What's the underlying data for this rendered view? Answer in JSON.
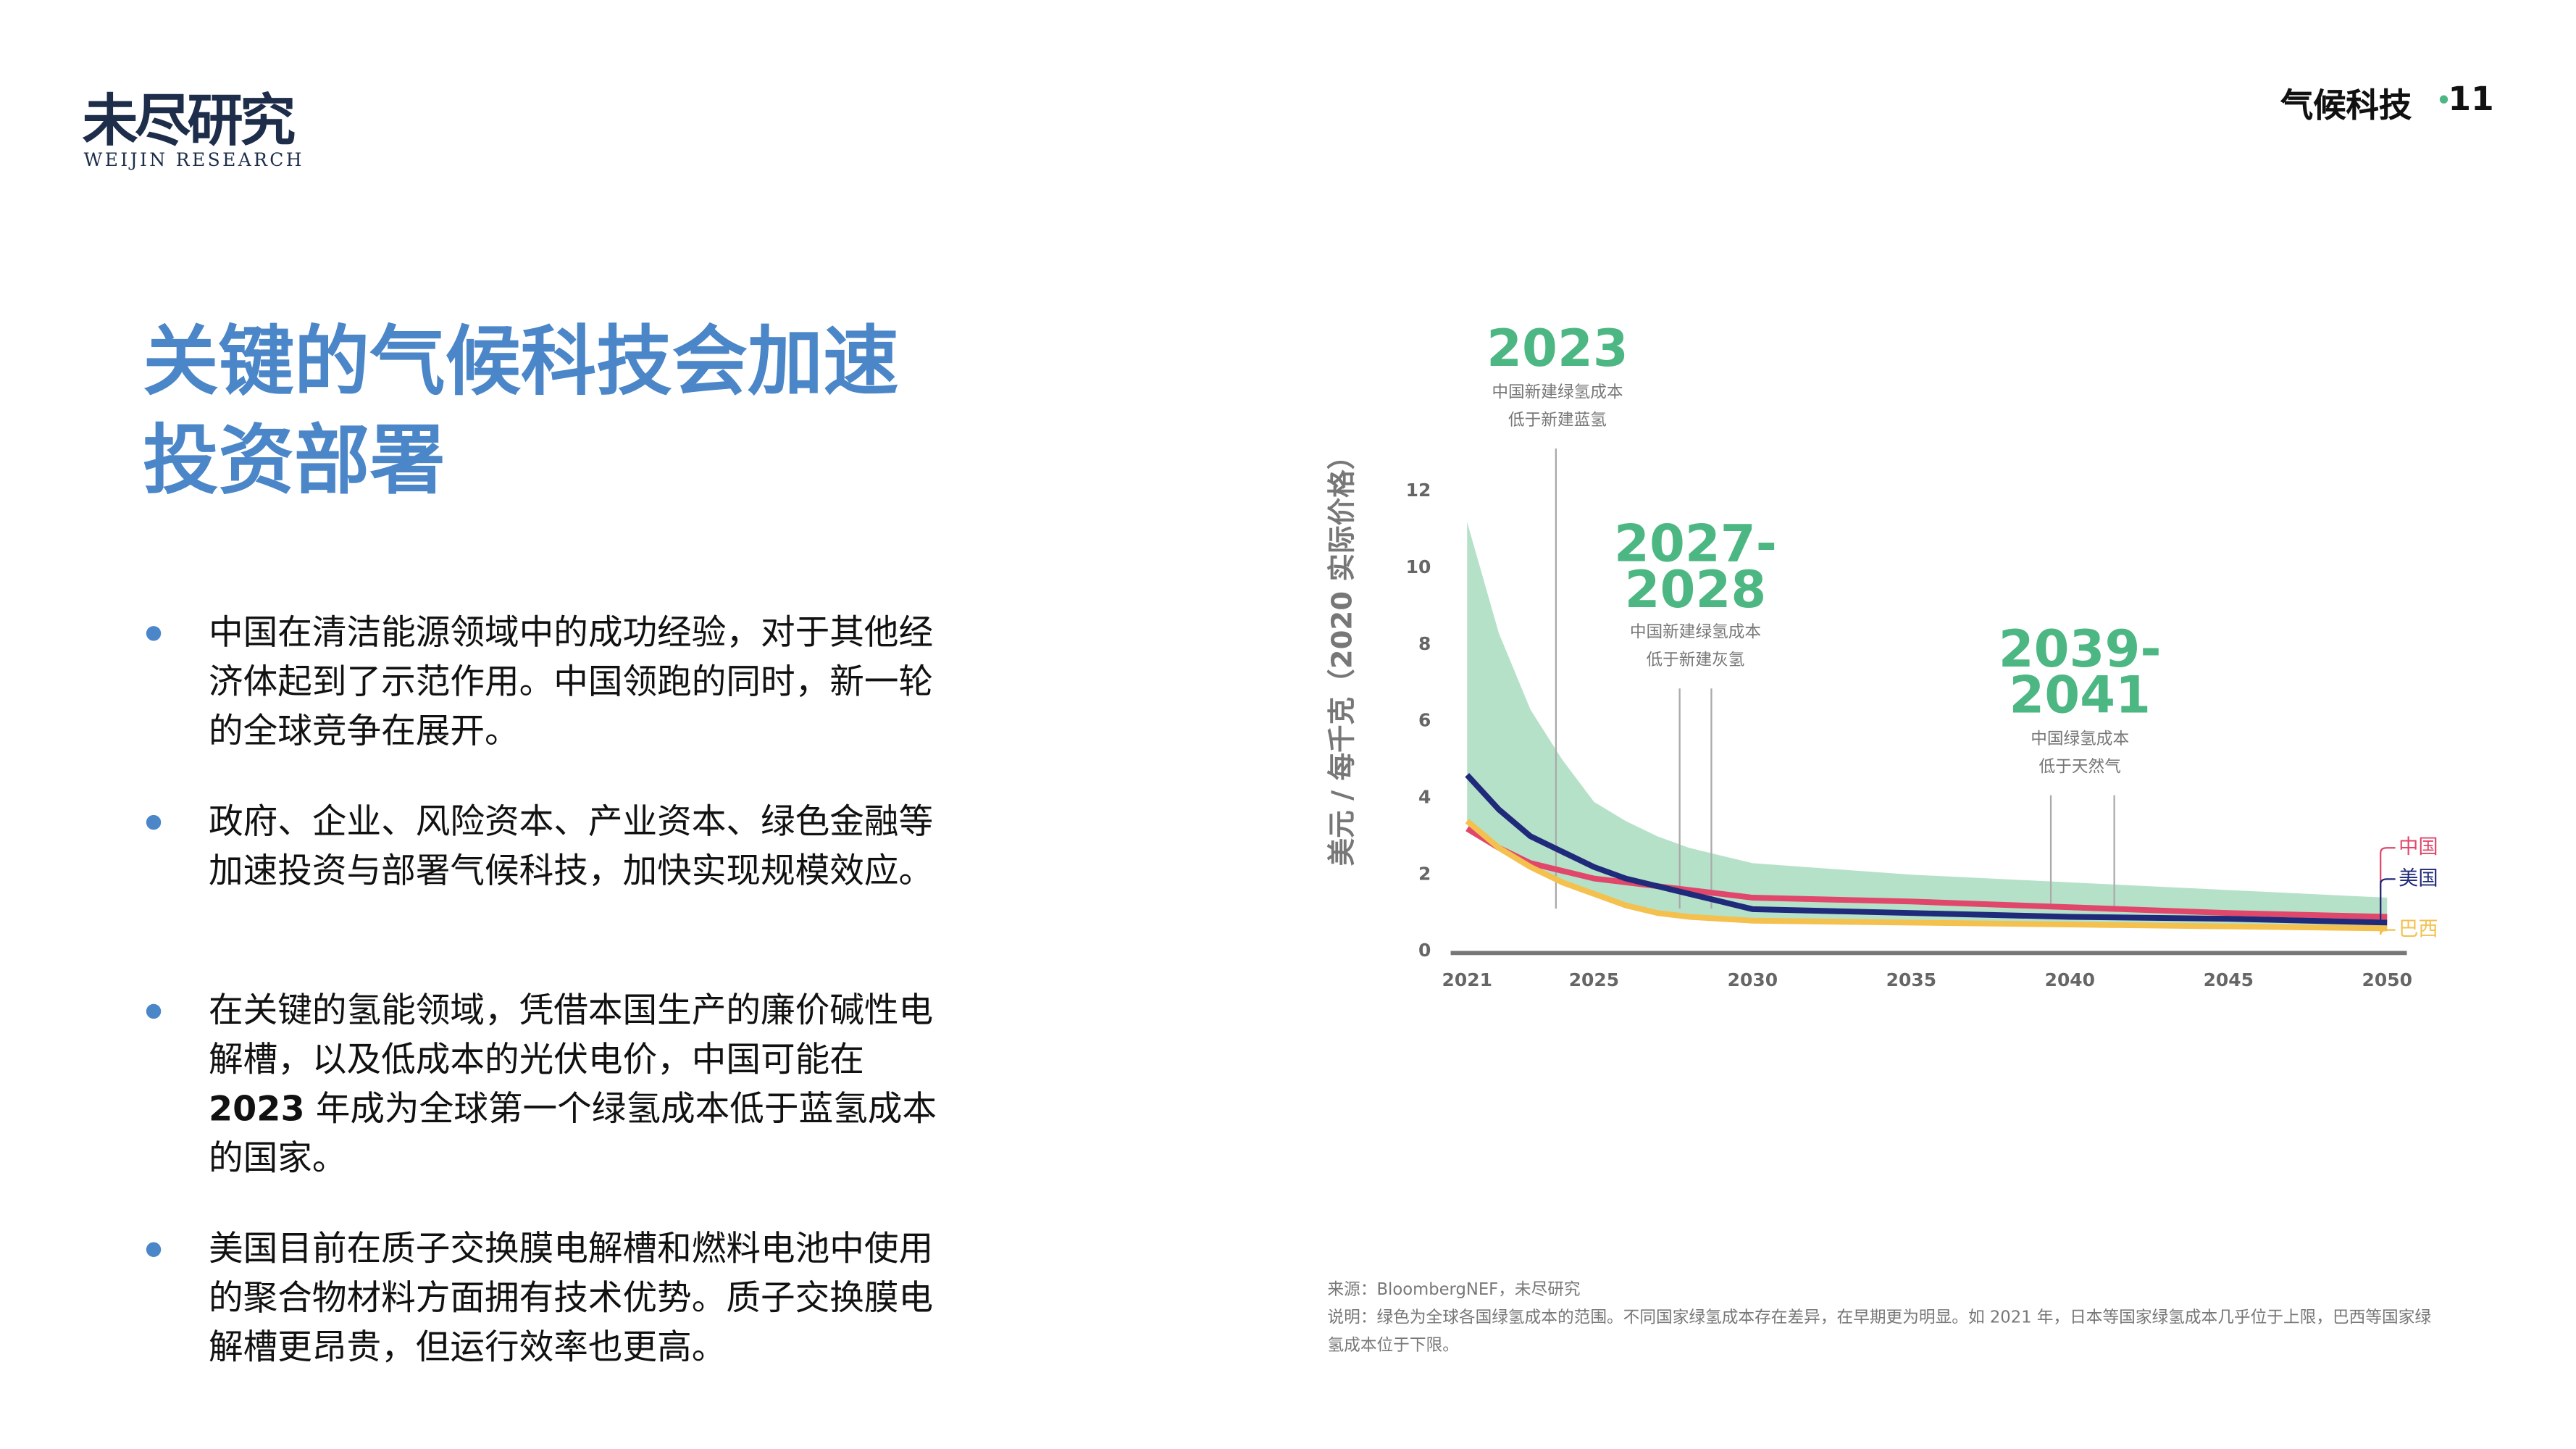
{
  "header": {
    "logo": "未尽研究",
    "logo_sub": "WEIJIN RESEARCH",
    "section": "气候科技",
    "page": "11"
  },
  "title": "关键的气候科技会加速投资部署",
  "bullets": [
    "中国在清洁能源领域中的成功经验，对于其他经济体起到了示范作用。中国领跑的同时，新一轮的全球竞争在展开。",
    "政府、企业、风险资本、产业资本、绿色金融等加速投资与部署气候科技，加快实现规模效应。",
    {
      "before": "在关键的氢能领域，凭借本国生产的廉价碱性电解槽，以及低成本的光伏电价，中国可能在",
      "bold": "2023",
      "after": " 年成为全球第一个绿氢成本低于蓝氢成本的国家。"
    },
    "美国目前在质子交换膜电解槽和燃料电池中使用的聚合物材料方面拥有技术优势。质子交换膜电解槽更昂贵，但运行效率也更高。"
  ],
  "chart_data": {
    "type": "line",
    "y_label": "美元 / 每千克（2020 实际价格）",
    "x": [
      2021,
      2022,
      2023,
      2024,
      2025,
      2026,
      2027,
      2028,
      2029,
      2030,
      2035,
      2040,
      2045,
      2050
    ],
    "xlim": [
      2021,
      2050
    ],
    "xticks": [
      2021,
      2025,
      2030,
      2035,
      2040,
      2045,
      2050
    ],
    "ylim": [
      0,
      12
    ],
    "yticks": [
      0,
      2,
      4,
      6,
      8,
      10,
      12
    ],
    "band": {
      "color": "#a9dcc0",
      "upper": [
        11.2,
        8.3,
        6.3,
        5.0,
        3.9,
        3.4,
        3.0,
        2.7,
        2.5,
        2.3,
        2.0,
        1.8,
        1.6,
        1.4
      ],
      "lower": [
        3.4,
        2.7,
        2.2,
        1.8,
        1.5,
        1.2,
        1.0,
        0.9,
        0.85,
        0.8,
        0.75,
        0.7,
        0.65,
        0.6
      ]
    },
    "series": [
      {
        "name": "中国",
        "color": "#e0476b",
        "values": [
          3.2,
          2.7,
          2.3,
          2.1,
          1.9,
          1.8,
          1.7,
          1.6,
          1.5,
          1.4,
          1.3,
          1.15,
          1.0,
          0.9
        ]
      },
      {
        "name": "美国",
        "color": "#1f2a7a",
        "values": [
          4.6,
          3.7,
          3.0,
          2.6,
          2.2,
          1.9,
          1.7,
          1.5,
          1.3,
          1.1,
          1.0,
          0.9,
          0.85,
          0.75
        ]
      },
      {
        "name": "巴西",
        "color": "#f4c04e",
        "values": [
          3.4,
          2.7,
          2.2,
          1.8,
          1.5,
          1.2,
          1.0,
          0.9,
          0.85,
          0.8,
          0.75,
          0.7,
          0.65,
          0.6
        ]
      }
    ],
    "annotations": [
      {
        "label": [
          "2023"
        ],
        "caption": [
          "中国新建绿氢成本",
          "低于新建蓝氢"
        ],
        "lines": [
          2023.8
        ]
      },
      {
        "label": [
          "2027-",
          "2028"
        ],
        "caption": [
          "中国新建绿氢成本",
          "低于新建灰氢"
        ],
        "lines": [
          2027.7,
          2028.7
        ]
      },
      {
        "label": [
          "2039-",
          "2041"
        ],
        "caption": [
          "中国绿氢成本",
          "低于天然气"
        ],
        "lines": [
          2039.4,
          2041.4
        ]
      }
    ]
  },
  "source": "来源：BloombergNEF，未尽研究",
  "note": "说明：绿色为全球各国绿氢成本的范围。不同国家绿氢成本存在差异，在早期更为明显。如 2021 年，日本等国家绿氢成本几乎位于上限，巴西等国家绿氢成本位于下限。"
}
